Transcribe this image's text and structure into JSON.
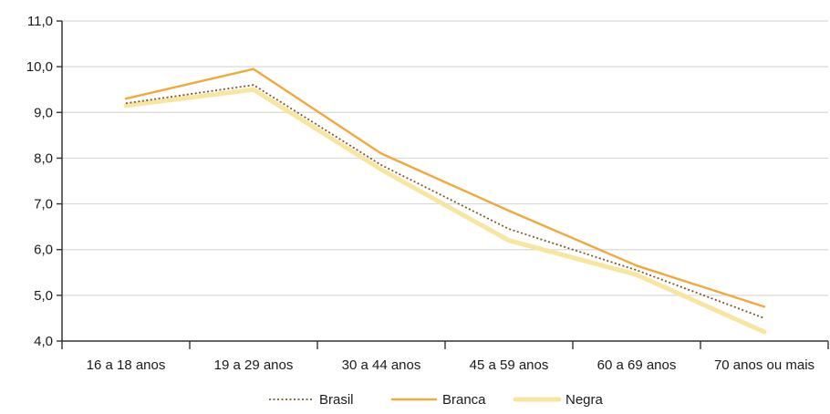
{
  "chart_data": {
    "type": "line",
    "categories": [
      "16 a 18 anos",
      "19 a 29 anos",
      "30 a 44 anos",
      "45 a 59 anos",
      "60 a 69 anos",
      "70 anos ou mais"
    ],
    "series": [
      {
        "name": "Negra",
        "values": [
          9.15,
          9.5,
          7.75,
          6.2,
          5.45,
          4.2
        ],
        "color": "#F8E6A0",
        "style": "solid-thick"
      },
      {
        "name": "Brasil",
        "values": [
          9.2,
          9.6,
          7.85,
          6.45,
          5.55,
          4.5
        ],
        "color": "#7A5A2E",
        "style": "dotted"
      },
      {
        "name": "Branca",
        "values": [
          9.3,
          9.95,
          8.1,
          6.85,
          5.65,
          4.75
        ],
        "color": "#F2A93B",
        "style": "solid"
      }
    ],
    "ylim": [
      4.0,
      11.0
    ],
    "yticks": [
      "11,0",
      "10,0",
      "9,0",
      "8,0",
      "7,0",
      "6,0",
      "5,0",
      "4,0"
    ],
    "grid": true,
    "legend": {
      "placement": "bottom-center",
      "items": [
        "Brasil",
        "Branca",
        "Negra"
      ]
    },
    "title": "",
    "xlabel": "",
    "ylabel": ""
  }
}
